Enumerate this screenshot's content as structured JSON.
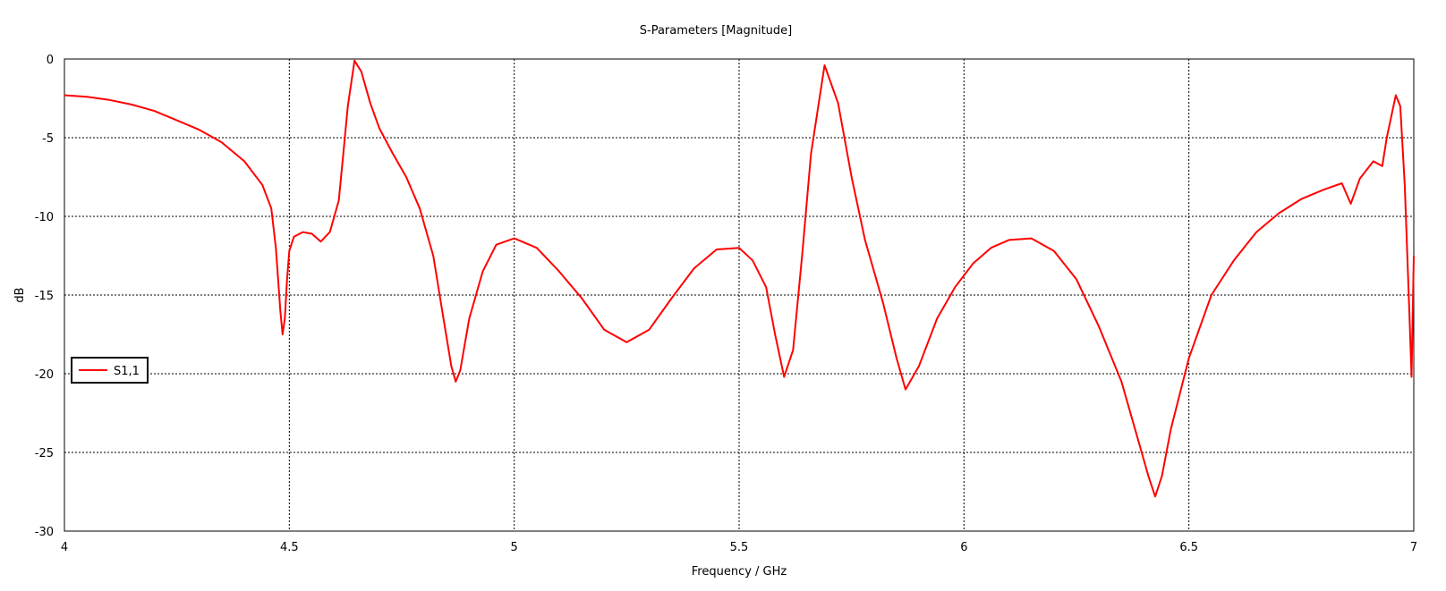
{
  "chart_data": {
    "type": "line",
    "title": "S-Parameters [Magnitude]",
    "xlabel": "Frequency / GHz",
    "ylabel": "dB",
    "xlim": [
      4,
      7
    ],
    "ylim": [
      -30,
      0
    ],
    "x_ticks": [
      4,
      4.5,
      5,
      5.5,
      6,
      6.5,
      7
    ],
    "x_tick_labels": [
      "4",
      "4.5",
      "5",
      "5.5",
      "6",
      "6.5",
      "7"
    ],
    "y_ticks": [
      0,
      -5,
      -10,
      -15,
      -20,
      -25,
      -30
    ],
    "y_tick_labels": [
      "0",
      "-5",
      "-10",
      "-15",
      "-20",
      "-25",
      "-30"
    ],
    "grid": true,
    "grid_style": "dotted",
    "legend_position": "middle-left",
    "series": [
      {
        "name": "S1,1",
        "color": "#ff0000",
        "points": [
          [
            4.0,
            -2.3
          ],
          [
            4.05,
            -2.4
          ],
          [
            4.1,
            -2.6
          ],
          [
            4.15,
            -2.9
          ],
          [
            4.2,
            -3.3
          ],
          [
            4.25,
            -3.9
          ],
          [
            4.3,
            -4.5
          ],
          [
            4.35,
            -5.3
          ],
          [
            4.4,
            -6.5
          ],
          [
            4.44,
            -8.0
          ],
          [
            4.46,
            -9.5
          ],
          [
            4.47,
            -12.0
          ],
          [
            4.48,
            -16.0
          ],
          [
            4.485,
            -17.5
          ],
          [
            4.49,
            -16.5
          ],
          [
            4.495,
            -14.0
          ],
          [
            4.5,
            -12.2
          ],
          [
            4.51,
            -11.3
          ],
          [
            4.53,
            -11.0
          ],
          [
            4.55,
            -11.1
          ],
          [
            4.57,
            -11.6
          ],
          [
            4.59,
            -11.0
          ],
          [
            4.61,
            -9.0
          ],
          [
            4.62,
            -6.0
          ],
          [
            4.63,
            -3.0
          ],
          [
            4.645,
            -0.1
          ],
          [
            4.66,
            -0.8
          ],
          [
            4.68,
            -2.8
          ],
          [
            4.7,
            -4.4
          ],
          [
            4.73,
            -6.0
          ],
          [
            4.76,
            -7.5
          ],
          [
            4.79,
            -9.5
          ],
          [
            4.82,
            -12.5
          ],
          [
            4.84,
            -16.0
          ],
          [
            4.86,
            -19.5
          ],
          [
            4.87,
            -20.5
          ],
          [
            4.88,
            -19.8
          ],
          [
            4.9,
            -16.5
          ],
          [
            4.93,
            -13.5
          ],
          [
            4.96,
            -11.8
          ],
          [
            5.0,
            -11.4
          ],
          [
            5.05,
            -12.0
          ],
          [
            5.1,
            -13.5
          ],
          [
            5.15,
            -15.2
          ],
          [
            5.2,
            -17.2
          ],
          [
            5.25,
            -18.0
          ],
          [
            5.3,
            -17.2
          ],
          [
            5.35,
            -15.2
          ],
          [
            5.4,
            -13.3
          ],
          [
            5.45,
            -12.1
          ],
          [
            5.5,
            -12.0
          ],
          [
            5.53,
            -12.8
          ],
          [
            5.56,
            -14.5
          ],
          [
            5.58,
            -17.5
          ],
          [
            5.6,
            -20.2
          ],
          [
            5.62,
            -18.5
          ],
          [
            5.64,
            -12.5
          ],
          [
            5.66,
            -6.0
          ],
          [
            5.69,
            -0.4
          ],
          [
            5.72,
            -2.8
          ],
          [
            5.75,
            -7.5
          ],
          [
            5.78,
            -11.5
          ],
          [
            5.82,
            -15.5
          ],
          [
            5.85,
            -19.0
          ],
          [
            5.87,
            -21.0
          ],
          [
            5.9,
            -19.5
          ],
          [
            5.94,
            -16.5
          ],
          [
            5.98,
            -14.5
          ],
          [
            6.02,
            -13.0
          ],
          [
            6.06,
            -12.0
          ],
          [
            6.1,
            -11.5
          ],
          [
            6.15,
            -11.4
          ],
          [
            6.2,
            -12.2
          ],
          [
            6.25,
            -14.0
          ],
          [
            6.3,
            -17.0
          ],
          [
            6.35,
            -20.5
          ],
          [
            6.39,
            -24.5
          ],
          [
            6.41,
            -26.5
          ],
          [
            6.425,
            -27.8
          ],
          [
            6.44,
            -26.5
          ],
          [
            6.46,
            -23.5
          ],
          [
            6.5,
            -19.0
          ],
          [
            6.55,
            -15.0
          ],
          [
            6.6,
            -12.8
          ],
          [
            6.65,
            -11.0
          ],
          [
            6.7,
            -9.8
          ],
          [
            6.75,
            -8.9
          ],
          [
            6.8,
            -8.3
          ],
          [
            6.84,
            -7.9
          ],
          [
            6.86,
            -9.2
          ],
          [
            6.88,
            -7.6
          ],
          [
            6.91,
            -6.5
          ],
          [
            6.93,
            -6.8
          ],
          [
            6.94,
            -5.0
          ],
          [
            6.96,
            -2.3
          ],
          [
            6.97,
            -3.0
          ],
          [
            6.98,
            -8.0
          ],
          [
            6.99,
            -16.0
          ],
          [
            6.995,
            -20.2
          ],
          [
            7.0,
            -12.5
          ]
        ]
      }
    ]
  }
}
